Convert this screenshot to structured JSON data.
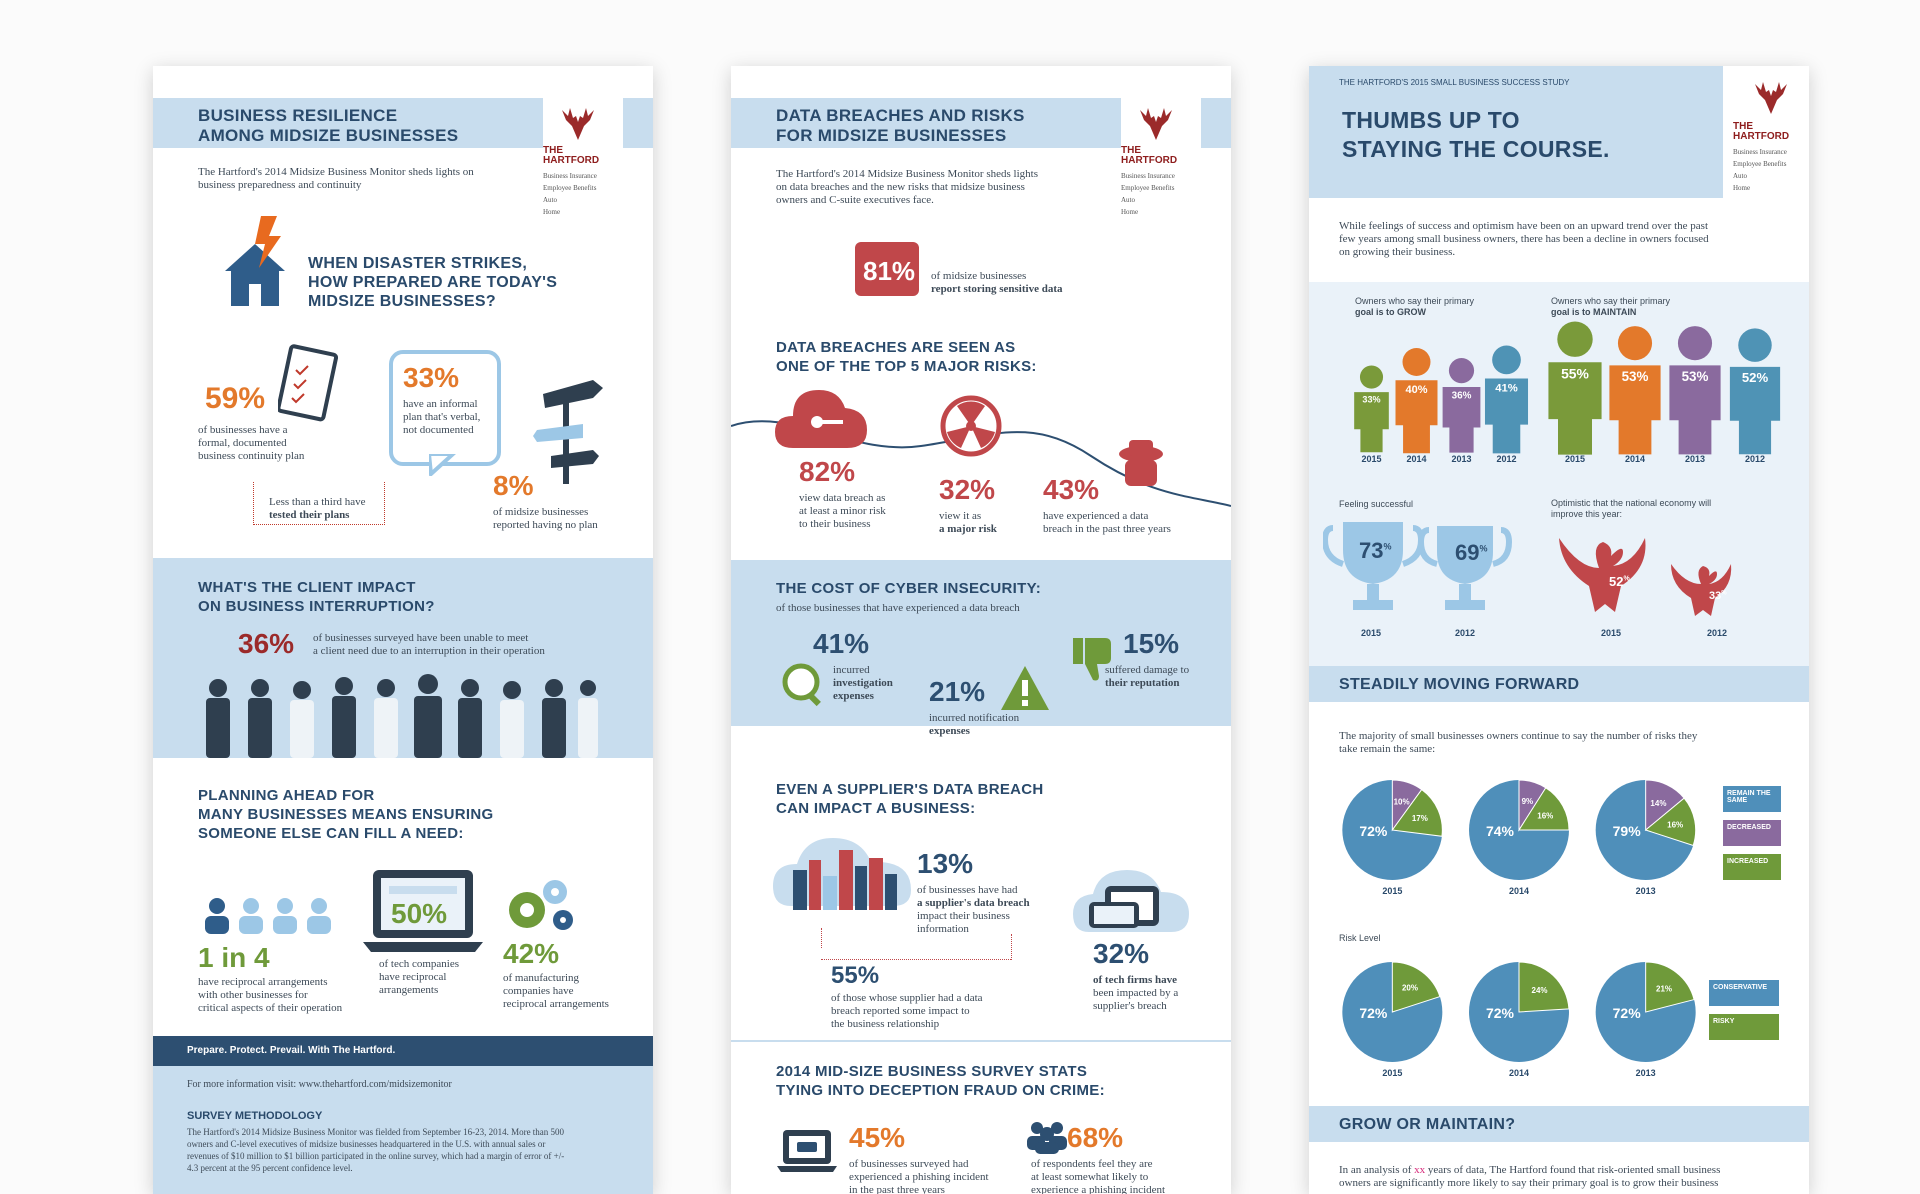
{
  "panel1": {
    "title_line1": "BUSINESS RESILIENCE",
    "title_line2": "AMONG MIDSIZE BUSINESSES",
    "intro": "The Hartford's 2014 Midsize Business Monitor sheds lights on business preparedness and continuity",
    "logo": {
      "the": "THE",
      "name": "HARTFORD",
      "items": [
        "Business Insurance",
        "Employee Benefits",
        "Auto",
        "Home"
      ]
    },
    "disaster_line1": "WHEN DISASTER STRIKES,",
    "disaster_line2": "HOW PREPARED ARE TODAY'S",
    "disaster_line3": "MIDSIZE BUSINESSES?",
    "stat59": "59%",
    "stat59_text1": "of businesses have a",
    "stat59_text2": "formal, documented",
    "stat59_text3": "business continuity plan",
    "stat33": "33%",
    "stat33_text1": "have an informal",
    "stat33_text2": "plan that's verbal,",
    "stat33_text3": "not documented",
    "tested_1": "Less than a third have",
    "tested_2": "tested their plans",
    "stat8": "8%",
    "stat8_text1": "of midsize businesses",
    "stat8_text2": "reported having no plan",
    "impact_line1": "WHAT'S THE CLIENT IMPACT",
    "impact_line2": "ON BUSINESS INTERRUPTION?",
    "stat36": "36%",
    "stat36_text1": "of businesses surveyed have been unable to meet",
    "stat36_text2": "a client need due to an interruption in their operation",
    "planning_line1": "PLANNING AHEAD FOR",
    "planning_line2": "MANY BUSINESSES MEANS ENSURING",
    "planning_line3": "SOMEONE ELSE CAN FILL A NEED:",
    "stat1in4": "1 in 4",
    "stat1in4_text1": "have reciprocal arrangements",
    "stat1in4_text2": "with other businesses for",
    "stat1in4_text3": "critical aspects of their operation",
    "stat50": "50%",
    "stat50_text1": "of tech companies",
    "stat50_text2": "have reciprocal",
    "stat50_text3": "arrangements",
    "stat42": "42%",
    "stat42_text1": "of manufacturing",
    "stat42_text2": "companies have",
    "stat42_text3": "reciprocal arrangements",
    "footer_tag": "Prepare. Protect. Prevail. With The Hartford.",
    "more_info": "For more information visit: www.thehartford.com/midsizemonitor",
    "method_title": "SURVEY METHODOLOGY",
    "method_1": "The Hartford's 2014 Midsize Business Monitor was fielded from September 16-23, 2014. More than 500",
    "method_2": "owners and C-level executives of midsize businesses headquartered in the U.S. with annual sales or",
    "method_3": "revenues of $10 million to $1 billion participated in the online survey, which had a margin of error of +/-",
    "method_4": "4.3 percent at the 95 percent confidence level."
  },
  "panel2": {
    "title_line1": "DATA BREACHES AND RISKS",
    "title_line2": "FOR MIDSIZE BUSINESSES",
    "intro1": "The Hartford's 2014 Midsize Business Monitor sheds lights",
    "intro2": "on data breaches and the new risks that midsize business",
    "intro3": "owners and C-suite executives face.",
    "stat81": "81%",
    "stat81_text1": "of midsize businesses",
    "stat81_text2": "report storing sensitive data",
    "risk_line1": "DATA BREACHES ARE SEEN AS",
    "risk_line2": "ONE OF THE TOP 5 MAJOR RISKS:",
    "stat82": "82%",
    "stat82_text1": "view data breach as",
    "stat82_text2": "at least a minor risk",
    "stat82_text3": "to their business",
    "stat32": "32%",
    "stat32_text1": "view it as",
    "stat32_text2": "a major risk",
    "stat43": "43%",
    "stat43_text1": "have experienced a data",
    "stat43_text2": "breach in the past three years",
    "cost_title": "THE COST OF CYBER INSECURITY:",
    "cost_sub": "of those businesses that have experienced a data breach",
    "stat41": "41%",
    "stat41_text1": "incurred",
    "stat41_text2": "investigation",
    "stat41_text3": "expenses",
    "stat21": "21%",
    "stat21_text1": "incurred notification",
    "stat21_text2": "expenses",
    "stat15": "15%",
    "stat15_text1": "suffered damage to",
    "stat15_text2": "their reputation",
    "supplier_line1": "EVEN A SUPPLIER'S DATA BREACH",
    "supplier_line2": "CAN IMPACT A BUSINESS:",
    "stat13": "13%",
    "stat13_text1": "of businesses have had",
    "stat13_text2": "a supplier's data breach",
    "stat13_text3": "impact their business",
    "stat13_text4": "information",
    "stat55": "55%",
    "stat55_text1": "of those whose supplier had a data",
    "stat55_text2": "breach reported some impact to",
    "stat55_text3": "the business relationship",
    "stat32b": "32%",
    "stat32b_text1": "of tech firms have",
    "stat32b_text2": "been impacted by a",
    "stat32b_text3": "supplier's breach",
    "survey_line1": "2014 MID-SIZE BUSINESS SURVEY STATS",
    "survey_line2": "TYING INTO DECEPTION FRAUD ON CRIME:",
    "stat45": "45%",
    "stat45_text1": "of businesses surveyed had",
    "stat45_text2": "experienced a phishing incident",
    "stat45_text3": "in the past three years",
    "stat68": "68%",
    "stat68_text1": "of respondents feel they are",
    "stat68_text2": "at least somewhat likely to",
    "stat68_text3": "experience a phishing incident"
  },
  "panel3": {
    "study": "THE HARTFORD'S 2015 SMALL BUSINESS SUCCESS STUDY",
    "title_line1": "THUMBS UP TO",
    "title_line2": "STAYING THE COURSE.",
    "intro1": "While feelings of success and optimism have been on an upward trend over the past",
    "intro2": "few years among small business owners, there has been a decline in owners focused",
    "intro3": "on growing their business.",
    "grow_label1": "Owners who say their primary",
    "grow_label2": "goal is to GROW",
    "maintain_label1": "Owners who say their primary",
    "maintain_label2": "goal is to MAINTAIN",
    "grow_people": [
      {
        "value": "33",
        "year": "2015",
        "color": "#7a9a3a"
      },
      {
        "value": "40",
        "year": "2014",
        "color": "#e3792b"
      },
      {
        "value": "36",
        "year": "2013",
        "color": "#8a6a9e"
      },
      {
        "value": "41",
        "year": "2012",
        "color": "#4f93b5"
      }
    ],
    "maintain_people": [
      {
        "value": "55",
        "year": "2015",
        "color": "#7a9a3a"
      },
      {
        "value": "53",
        "year": "2014",
        "color": "#e3792b"
      },
      {
        "value": "53",
        "year": "2013",
        "color": "#8a6a9e"
      },
      {
        "value": "52",
        "year": "2012",
        "color": "#4f93b5"
      }
    ],
    "success_label": "Feeling successful",
    "trophy1": "73",
    "trophy1_year": "2015",
    "trophy2": "69",
    "trophy2_year": "2012",
    "optimism_label1": "Optimistic that the national economy will",
    "optimism_label2": "improve this year:",
    "eagle1": "52",
    "eagle1_year": "2015",
    "eagle2": "33",
    "eagle2_year": "2012",
    "pct_sign": "%",
    "steady_title": "STEADILY MOVING FORWARD",
    "steady_text1": "The majority of small businesses owners continue to say the number of risks they",
    "steady_text2": "take remain the same:",
    "risk_level": "Risk Level",
    "legend1": [
      "REMAIN THE SAME",
      "DECREASED",
      "INCREASED"
    ],
    "legend2": [
      "CONSERVATIVE",
      "RISKY"
    ],
    "grow_title": "GROW OR MAINTAIN?",
    "grow_text1_a": "In an analysis of ",
    "grow_text1_b": "xx",
    "grow_text1_c": " years of data, The Hartford found that risk-oriented small business",
    "grow_text2": "owners are significantly more likely to say their primary goal is to grow their business"
  },
  "chart_data": [
    {
      "type": "pie",
      "title": "The majority of small businesses owners continue to say the number of risks they take remain the same:",
      "categories": [
        "2015",
        "2014",
        "2013"
      ],
      "series": [
        {
          "name": "REMAIN THE SAME",
          "values": [
            72,
            74,
            79
          ]
        },
        {
          "name": "DECREASED",
          "values": [
            10,
            9,
            14
          ]
        },
        {
          "name": "INCREASED",
          "values": [
            17,
            16,
            16
          ]
        }
      ],
      "colors": [
        "#4f8fba",
        "#8a6a9e",
        "#6f9a3a"
      ]
    },
    {
      "type": "pie",
      "title": "Risk Level",
      "categories": [
        "2015",
        "2014",
        "2013"
      ],
      "series": [
        {
          "name": "CONSERVATIVE",
          "values": [
            72,
            72,
            72
          ]
        },
        {
          "name": "RISKY",
          "values": [
            20,
            24,
            21
          ]
        }
      ],
      "colors": [
        "#4f8fba",
        "#6f9a3a"
      ]
    }
  ]
}
